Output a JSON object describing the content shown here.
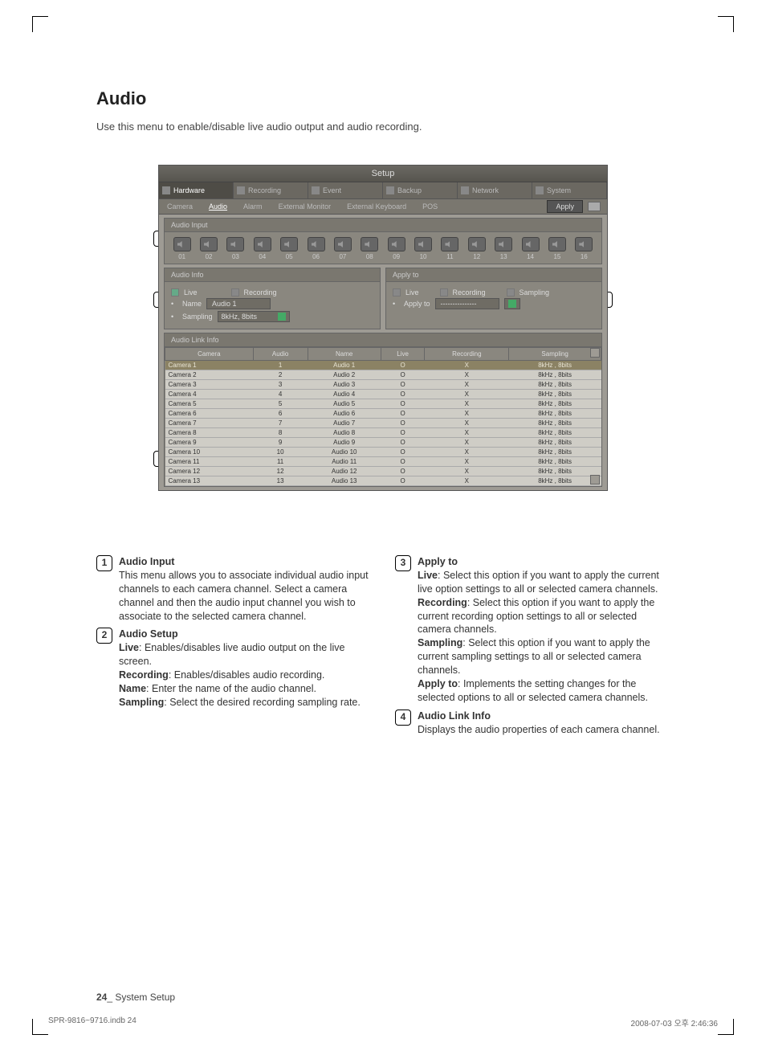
{
  "page": {
    "title": "Audio",
    "intro": "Use this menu to enable/disable live audio output and audio recording.",
    "footer_num": "24",
    "footer_sep": "_",
    "footer_section": "System Setup",
    "meta_left": "SPR-9816~9716.indb   24",
    "meta_right": "2008-07-03   오후 2:46:36"
  },
  "shot": {
    "window_title": "Setup",
    "main_tabs": [
      "Hardware",
      "Recording",
      "Event",
      "Backup",
      "Network",
      "System"
    ],
    "main_active": 0,
    "sub_tabs": [
      "Camera",
      "Audio",
      "Alarm",
      "External Monitor",
      "External Keyboard",
      "POS"
    ],
    "sub_active": 1,
    "apply_btn": "Apply",
    "panels": {
      "audio_input": {
        "title": "Audio Input",
        "count": 16
      },
      "audio_info": {
        "title": "Audio Info",
        "live_label": "Live",
        "live_checked": true,
        "rec_label": "Recording",
        "rec_checked": false,
        "name_label": "Name",
        "name_value": "Audio 1",
        "sampling_label": "Sampling",
        "sampling_value": "8kHz, 8bits"
      },
      "apply_to": {
        "title": "Apply to",
        "live_label": "Live",
        "rec_label": "Recording",
        "samp_label": "Sampling",
        "applyto_label": "Apply to",
        "applyto_value": "---------------"
      },
      "link": {
        "title": "Audio Link Info",
        "cols": [
          "Camera",
          "Audio",
          "Name",
          "Live",
          "Recording",
          "Sampling"
        ],
        "rows": [
          [
            "Camera 1",
            "1",
            "Audio 1",
            "O",
            "X",
            "8kHz , 8bits"
          ],
          [
            "Camera 2",
            "2",
            "Audio 2",
            "O",
            "X",
            "8kHz , 8bits"
          ],
          [
            "Camera 3",
            "3",
            "Audio 3",
            "O",
            "X",
            "8kHz , 8bits"
          ],
          [
            "Camera 4",
            "4",
            "Audio 4",
            "O",
            "X",
            "8kHz , 8bits"
          ],
          [
            "Camera 5",
            "5",
            "Audio 5",
            "O",
            "X",
            "8kHz , 8bits"
          ],
          [
            "Camera 6",
            "6",
            "Audio 6",
            "O",
            "X",
            "8kHz , 8bits"
          ],
          [
            "Camera 7",
            "7",
            "Audio 7",
            "O",
            "X",
            "8kHz , 8bits"
          ],
          [
            "Camera 8",
            "8",
            "Audio 8",
            "O",
            "X",
            "8kHz , 8bits"
          ],
          [
            "Camera 9",
            "9",
            "Audio 9",
            "O",
            "X",
            "8kHz , 8bits"
          ],
          [
            "Camera 10",
            "10",
            "Audio 10",
            "O",
            "X",
            "8kHz , 8bits"
          ],
          [
            "Camera 11",
            "11",
            "Audio 11",
            "O",
            "X",
            "8kHz , 8bits"
          ],
          [
            "Camera 12",
            "12",
            "Audio 12",
            "O",
            "X",
            "8kHz , 8bits"
          ],
          [
            "Camera 13",
            "13",
            "Audio 13",
            "O",
            "X",
            "8kHz , 8bits"
          ]
        ]
      }
    }
  },
  "desc": {
    "items": [
      {
        "n": "1",
        "title": "Audio Input",
        "body": "This menu allows you to associate individual audio input channels to each camera channel. Select a camera channel and then the audio input channel you wish to associate to the selected camera channel."
      },
      {
        "n": "2",
        "title": "Audio Setup",
        "lines": [
          {
            "b": "Live",
            "t": ": Enables/disables live audio output on the live screen."
          },
          {
            "b": "Recording",
            "t": ": Enables/disables audio recording."
          },
          {
            "b": "Name",
            "t": ": Enter the name of the audio channel."
          },
          {
            "b": "Sampling",
            "t": ": Select the desired recording sampling rate."
          }
        ]
      },
      {
        "n": "3",
        "title": "Apply to",
        "lines": [
          {
            "b": "Live",
            "t": ": Select this option if you want to apply the current live option settings to all or selected camera channels."
          },
          {
            "b": "Recording",
            "t": ": Select this option if you want to apply the current recording option settings to all or selected camera channels."
          },
          {
            "b": "Sampling",
            "t": ": Select this option if you want to apply the current sampling settings to all or selected camera channels."
          },
          {
            "b": "Apply to",
            "t": ": Implements the setting changes for the selected options to all or selected camera channels."
          }
        ]
      },
      {
        "n": "4",
        "title": "Audio Link Info",
        "body": "Displays the audio properties of each camera channel."
      }
    ]
  }
}
